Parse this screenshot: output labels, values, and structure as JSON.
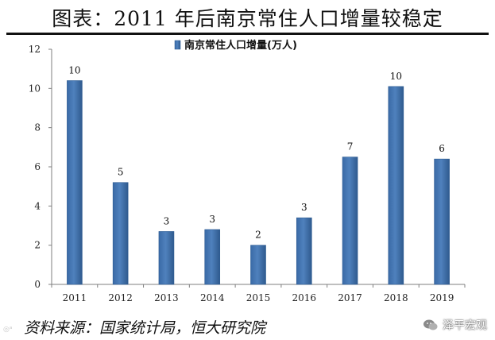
{
  "title": "图表：2011 年后南京常住人口增量较稳定",
  "source": "资料来源：国家统计局，恒大研究院",
  "brand": "泽平宏观",
  "colors": {
    "bar_fill": "#4F81BD",
    "bar_edge": "#2E5C93",
    "rule": "#111111"
  },
  "icons": {
    "brand_logo": "wechat-logo-icon",
    "watermark": "camera-watermark-icon"
  },
  "chart_data": {
    "type": "bar",
    "categories": [
      "2011",
      "2012",
      "2013",
      "2014",
      "2015",
      "2016",
      "2017",
      "2018",
      "2019"
    ],
    "series": [
      {
        "name": "南京常住人口增量(万人)",
        "values": [
          10.4,
          5.2,
          2.7,
          2.8,
          2.0,
          3.4,
          6.5,
          10.1,
          6.4
        ],
        "data_labels": [
          "10",
          "5",
          "3",
          "3",
          "2",
          "3",
          "7",
          "10",
          "6"
        ]
      }
    ],
    "yticks": [
      "0",
      "2",
      "4",
      "6",
      "8",
      "10",
      "12"
    ],
    "ylim": [
      0,
      12
    ],
    "grid": false,
    "legend_position": "top-center"
  }
}
